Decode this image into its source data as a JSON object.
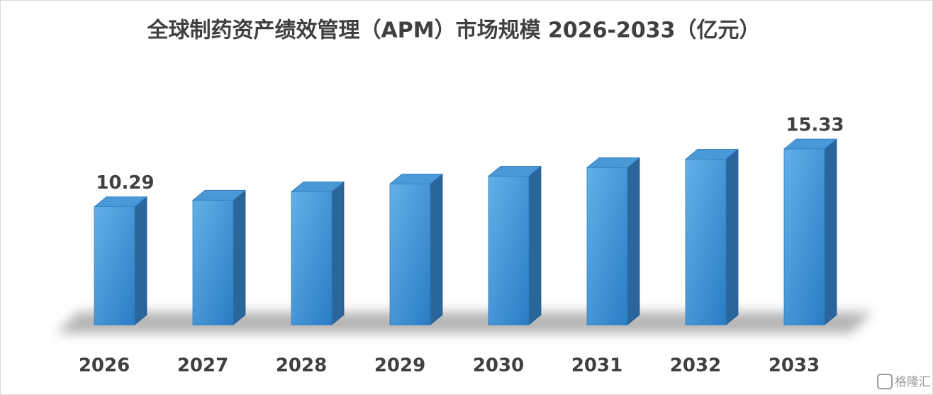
{
  "chart_data": {
    "type": "bar3d",
    "title": "全球制药资产绩效管理（APM）市场规模 2026-2033（亿元）",
    "categories": [
      "2026",
      "2027",
      "2028",
      "2029",
      "2030",
      "2031",
      "2032",
      "2033"
    ],
    "values": [
      10.29,
      10.86,
      11.6,
      12.28,
      12.96,
      13.7,
      14.44,
      15.33
    ],
    "value_labels": [
      "10.29",
      null,
      null,
      null,
      null,
      null,
      null,
      "15.33"
    ],
    "color": "#3f94d6",
    "watermark": "格隆汇"
  }
}
